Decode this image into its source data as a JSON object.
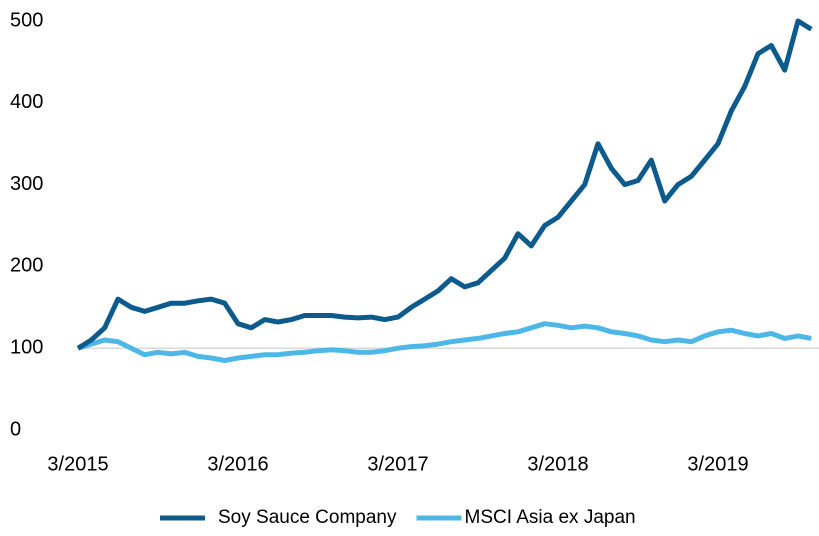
{
  "chart_data": {
    "type": "line",
    "categories": [
      "3/2015",
      null,
      null,
      null,
      null,
      null,
      null,
      null,
      null,
      null,
      null,
      null,
      "3/2016",
      null,
      null,
      null,
      null,
      null,
      null,
      null,
      null,
      null,
      null,
      null,
      "3/2017",
      null,
      null,
      null,
      null,
      null,
      null,
      null,
      null,
      null,
      null,
      null,
      "3/2018",
      null,
      null,
      null,
      null,
      null,
      null,
      null,
      null,
      null,
      null,
      null,
      "3/2019",
      null,
      null,
      null,
      null,
      null,
      null,
      null
    ],
    "series": [
      {
        "name": "Soy Sauce Company",
        "color": "#0d5b8c",
        "values": [
          100,
          110,
          125,
          160,
          150,
          145,
          150,
          155,
          155,
          158,
          160,
          155,
          130,
          125,
          135,
          132,
          135,
          140,
          140,
          140,
          138,
          137,
          138,
          135,
          138,
          150,
          160,
          170,
          185,
          175,
          180,
          195,
          210,
          240,
          225,
          250,
          260,
          280,
          300,
          350,
          320,
          300,
          305,
          330,
          280,
          300,
          310,
          330,
          350,
          390,
          420,
          460,
          470,
          440,
          500,
          490
        ]
      },
      {
        "name": "MSCI Asia ex Japan",
        "color": "#4db8e8",
        "values": [
          100,
          105,
          110,
          108,
          100,
          92,
          95,
          93,
          95,
          90,
          88,
          85,
          88,
          90,
          92,
          92,
          94,
          95,
          97,
          98,
          97,
          95,
          95,
          97,
          100,
          102,
          103,
          105,
          108,
          110,
          112,
          115,
          118,
          120,
          125,
          130,
          128,
          125,
          127,
          125,
          120,
          118,
          115,
          110,
          108,
          110,
          108,
          115,
          120,
          122,
          118,
          115,
          118,
          112,
          115,
          112
        ]
      }
    ],
    "ylim": [
      0,
      500
    ],
    "yticks": [
      0,
      100,
      200,
      300,
      400,
      500
    ],
    "reference_line": 100,
    "legend": "bottom"
  }
}
